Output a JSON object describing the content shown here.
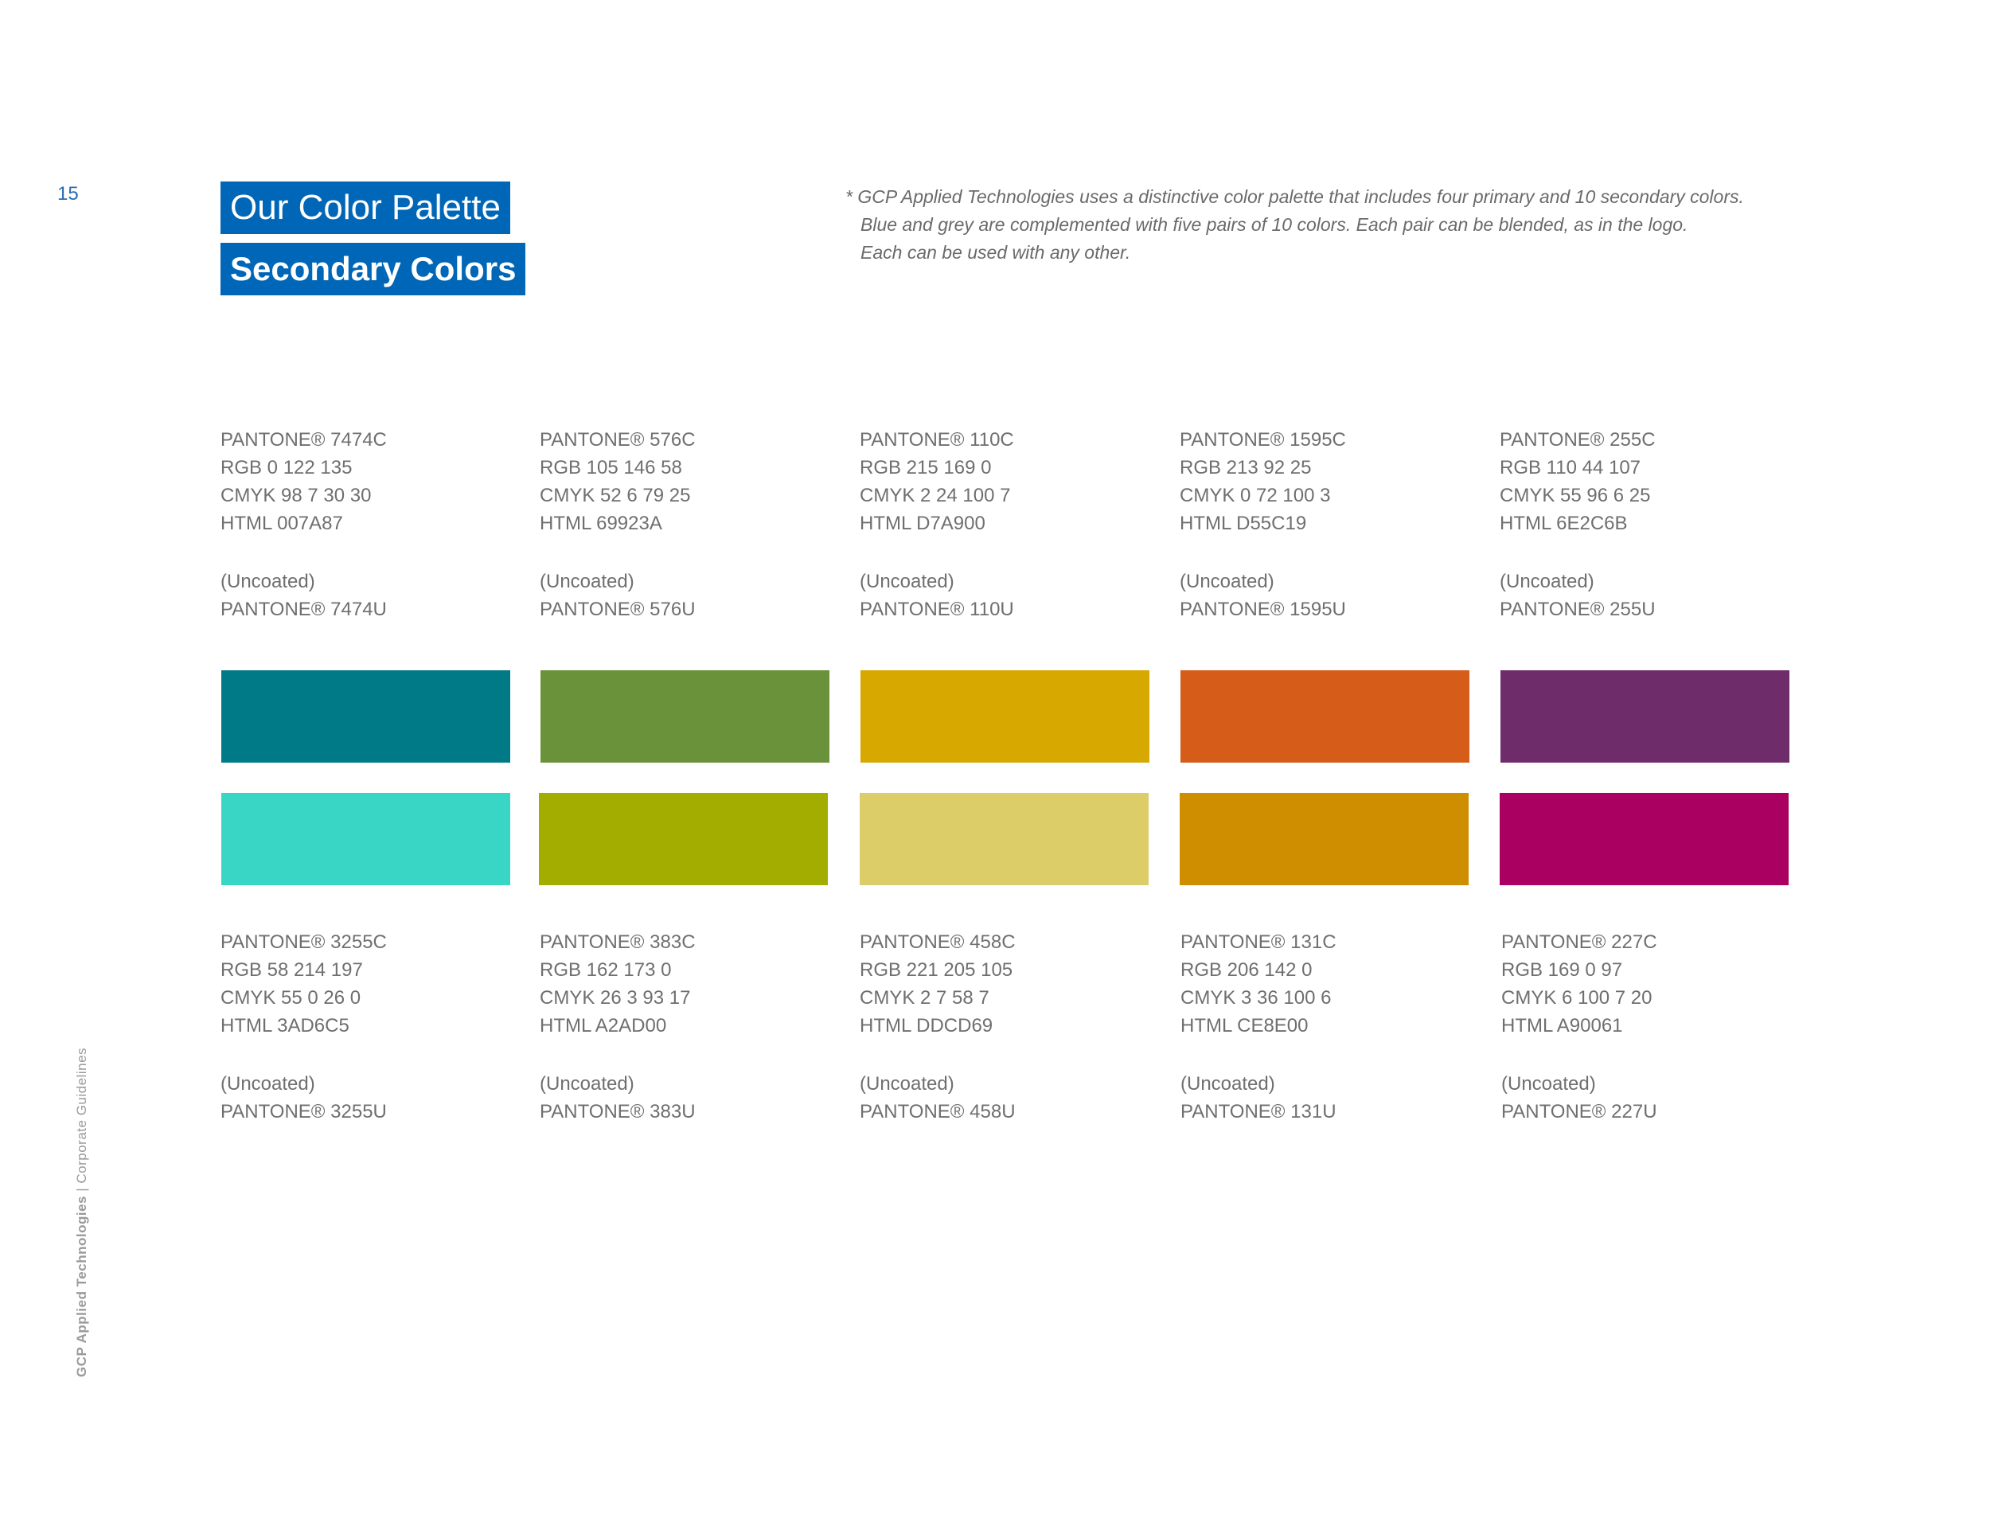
{
  "page_number": "15",
  "title": "Our Color Palette",
  "subtitle": "Secondary Colors",
  "note_lines": [
    "* GCP Applied Technologies uses a distinctive color palette that includes four primary and 10 secondary colors.",
    "Blue and grey are complemented with five pairs of 10 colors. Each pair can be blended, as in the logo.",
    "Each can be used with any other."
  ],
  "footer": {
    "company": "GCP Applied Technologies",
    "separator": " | ",
    "section": "Corporate Guidelines"
  },
  "top_row": [
    {
      "pantone": "PANTONE® 7474C",
      "rgb": "RGB 0 122 135",
      "cmyk": "CMYK 98 7 30 30",
      "html": "HTML 007A87",
      "uncoated_label": "(Uncoated)",
      "uncoated": "PANTONE® 7474U",
      "color": "#007A87"
    },
    {
      "pantone": "PANTONE® 576C",
      "rgb": "RGB 105 146 58",
      "cmyk": "CMYK 52 6 79 25",
      "html": "HTML 69923A",
      "uncoated_label": "(Uncoated)",
      "uncoated": "PANTONE® 576U",
      "color": "#69923A"
    },
    {
      "pantone": "PANTONE® 110C",
      "rgb": "RGB 215 169 0",
      "cmyk": "CMYK 2 24 100 7",
      "html": "HTML D7A900",
      "uncoated_label": "(Uncoated)",
      "uncoated": "PANTONE® 110U",
      "color": "#D7A900"
    },
    {
      "pantone": "PANTONE® 1595C",
      "rgb": "RGB 213 92 25",
      "cmyk": "CMYK 0 72 100 3",
      "html": "HTML D55C19",
      "uncoated_label": "(Uncoated)",
      "uncoated": "PANTONE® 1595U",
      "color": "#D55C19"
    },
    {
      "pantone": "PANTONE® 255C",
      "rgb": "RGB 110 44 107",
      "cmyk": "CMYK 55 96 6 25",
      "html": "HTML 6E2C6B",
      "uncoated_label": "(Uncoated)",
      "uncoated": "PANTONE® 255U",
      "color": "#6E2C6B"
    }
  ],
  "bottom_row": [
    {
      "pantone": "PANTONE® 3255C",
      "rgb": "RGB 58 214 197",
      "cmyk": "CMYK 55 0 26 0",
      "html": "HTML 3AD6C5",
      "uncoated_label": "(Uncoated)",
      "uncoated": "PANTONE® 3255U",
      "color": "#3AD6C5"
    },
    {
      "pantone": "PANTONE® 383C",
      "rgb": "RGB 162 173 0",
      "cmyk": "CMYK 26 3 93 17",
      "html": "HTML A2AD00",
      "uncoated_label": "(Uncoated)",
      "uncoated": "PANTONE® 383U",
      "color": "#A2AD00"
    },
    {
      "pantone": "PANTONE® 458C",
      "rgb": "RGB 221 205 105",
      "cmyk": "CMYK 2 7 58 7",
      "html": "HTML DDCD69",
      "uncoated_label": "(Uncoated)",
      "uncoated": "PANTONE® 458U",
      "color": "#DDCD69"
    },
    {
      "pantone": "PANTONE® 131C",
      "rgb": "RGB 206 142 0",
      "cmyk": "CMYK 3 36 100 6",
      "html": "HTML CE8E00",
      "uncoated_label": "(Uncoated)",
      "uncoated": "PANTONE® 131U",
      "color": "#CE8E00"
    },
    {
      "pantone": "PANTONE® 227C",
      "rgb": "RGB 169 0 97",
      "cmyk": "CMYK 6 100 7 20",
      "html": "HTML A90061",
      "uncoated_label": "(Uncoated)",
      "uncoated": "PANTONE® 227U",
      "color": "#A90061"
    }
  ]
}
